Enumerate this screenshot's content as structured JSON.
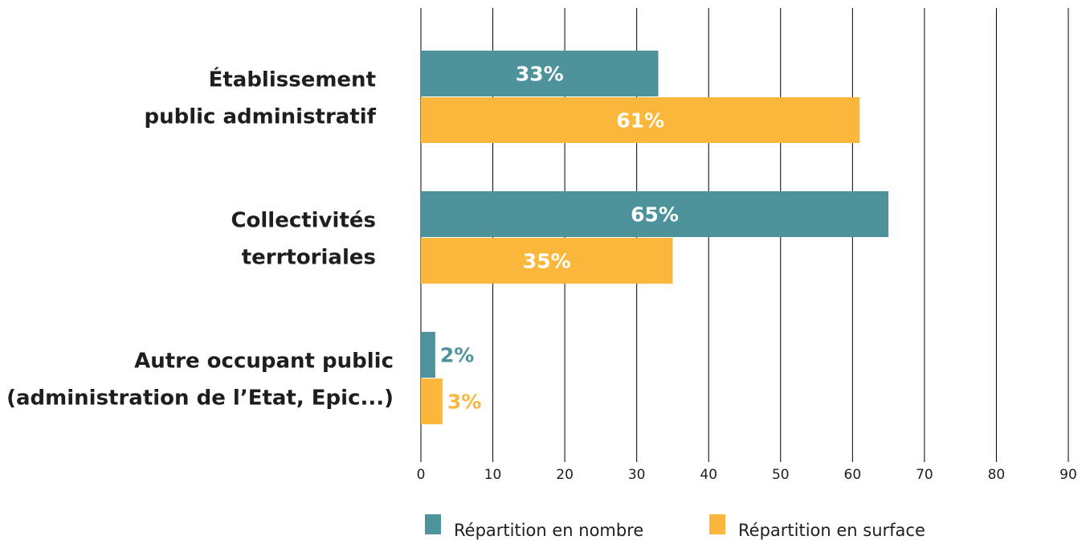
{
  "chart_data": {
    "type": "hbar",
    "categories": [
      [
        "Établissement",
        "public administratif"
      ],
      [
        "Collectivités",
        "terrtoriales"
      ],
      [
        "Autre occupant public",
        "(administration de l’Etat, Epic...)"
      ]
    ],
    "series": [
      {
        "name": "Répartition en nombre",
        "color": "#4e939c",
        "values": [
          33,
          65,
          2
        ],
        "value_labels": [
          "33%",
          "65%",
          "2%"
        ]
      },
      {
        "name": "Répartition en surface",
        "color": "#fbb73b",
        "values": [
          61,
          35,
          3
        ],
        "value_labels": [
          "61%",
          "35%",
          "3%"
        ]
      }
    ],
    "xlim": [
      0,
      90
    ],
    "xticks": [
      0,
      10,
      20,
      30,
      40,
      50,
      60,
      70,
      80,
      90
    ],
    "grid": true
  }
}
